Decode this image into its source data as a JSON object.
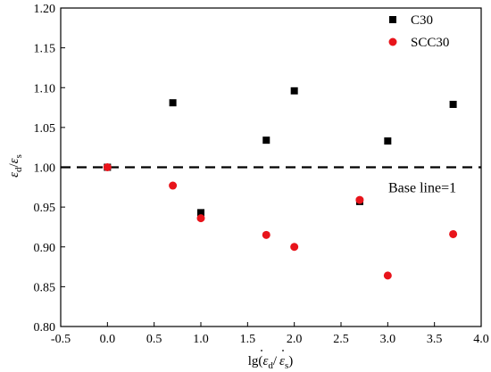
{
  "chart_data": {
    "type": "scatter",
    "title": "",
    "xlabel_parts": {
      "lg": "lg(",
      "eps": "ε",
      "sub_d": "d",
      "slash": "/",
      "sub_s": "s",
      "close": ")"
    },
    "ylabel_parts": {
      "eps": "ε",
      "sub_d": "d",
      "slash": "/",
      "sub_s": "s"
    },
    "xlim": [
      -0.5,
      4.0
    ],
    "ylim": [
      0.8,
      1.2
    ],
    "xticks": [
      "-0.5",
      "0.0",
      "0.5",
      "1.0",
      "1.5",
      "2.0",
      "2.5",
      "3.0",
      "3.5",
      "4.0"
    ],
    "yticks": [
      "0.80",
      "0.85",
      "0.90",
      "0.95",
      "1.00",
      "1.05",
      "1.10",
      "1.15",
      "1.20"
    ],
    "grid": false,
    "legend_position": "top-right",
    "series": [
      {
        "name": "C30",
        "marker": "square",
        "color": "#000000",
        "points": [
          {
            "x": 0.0,
            "y": 1.0
          },
          {
            "x": 0.7,
            "y": 1.081
          },
          {
            "x": 1.0,
            "y": 0.943
          },
          {
            "x": 1.7,
            "y": 1.034
          },
          {
            "x": 2.0,
            "y": 1.096
          },
          {
            "x": 2.7,
            "y": 0.957
          },
          {
            "x": 3.0,
            "y": 1.033
          },
          {
            "x": 3.7,
            "y": 1.079
          }
        ]
      },
      {
        "name": "SCC30",
        "marker": "circle",
        "color": "#e8141b",
        "points": [
          {
            "x": 0.0,
            "y": 1.0
          },
          {
            "x": 0.7,
            "y": 0.977
          },
          {
            "x": 1.0,
            "y": 0.936
          },
          {
            "x": 1.7,
            "y": 0.915
          },
          {
            "x": 2.0,
            "y": 0.9
          },
          {
            "x": 2.7,
            "y": 0.959
          },
          {
            "x": 3.0,
            "y": 0.864
          },
          {
            "x": 3.7,
            "y": 0.916
          }
        ]
      }
    ],
    "reference_line": {
      "y": 1.0,
      "style": "dashed",
      "label": "Base line=1"
    }
  }
}
